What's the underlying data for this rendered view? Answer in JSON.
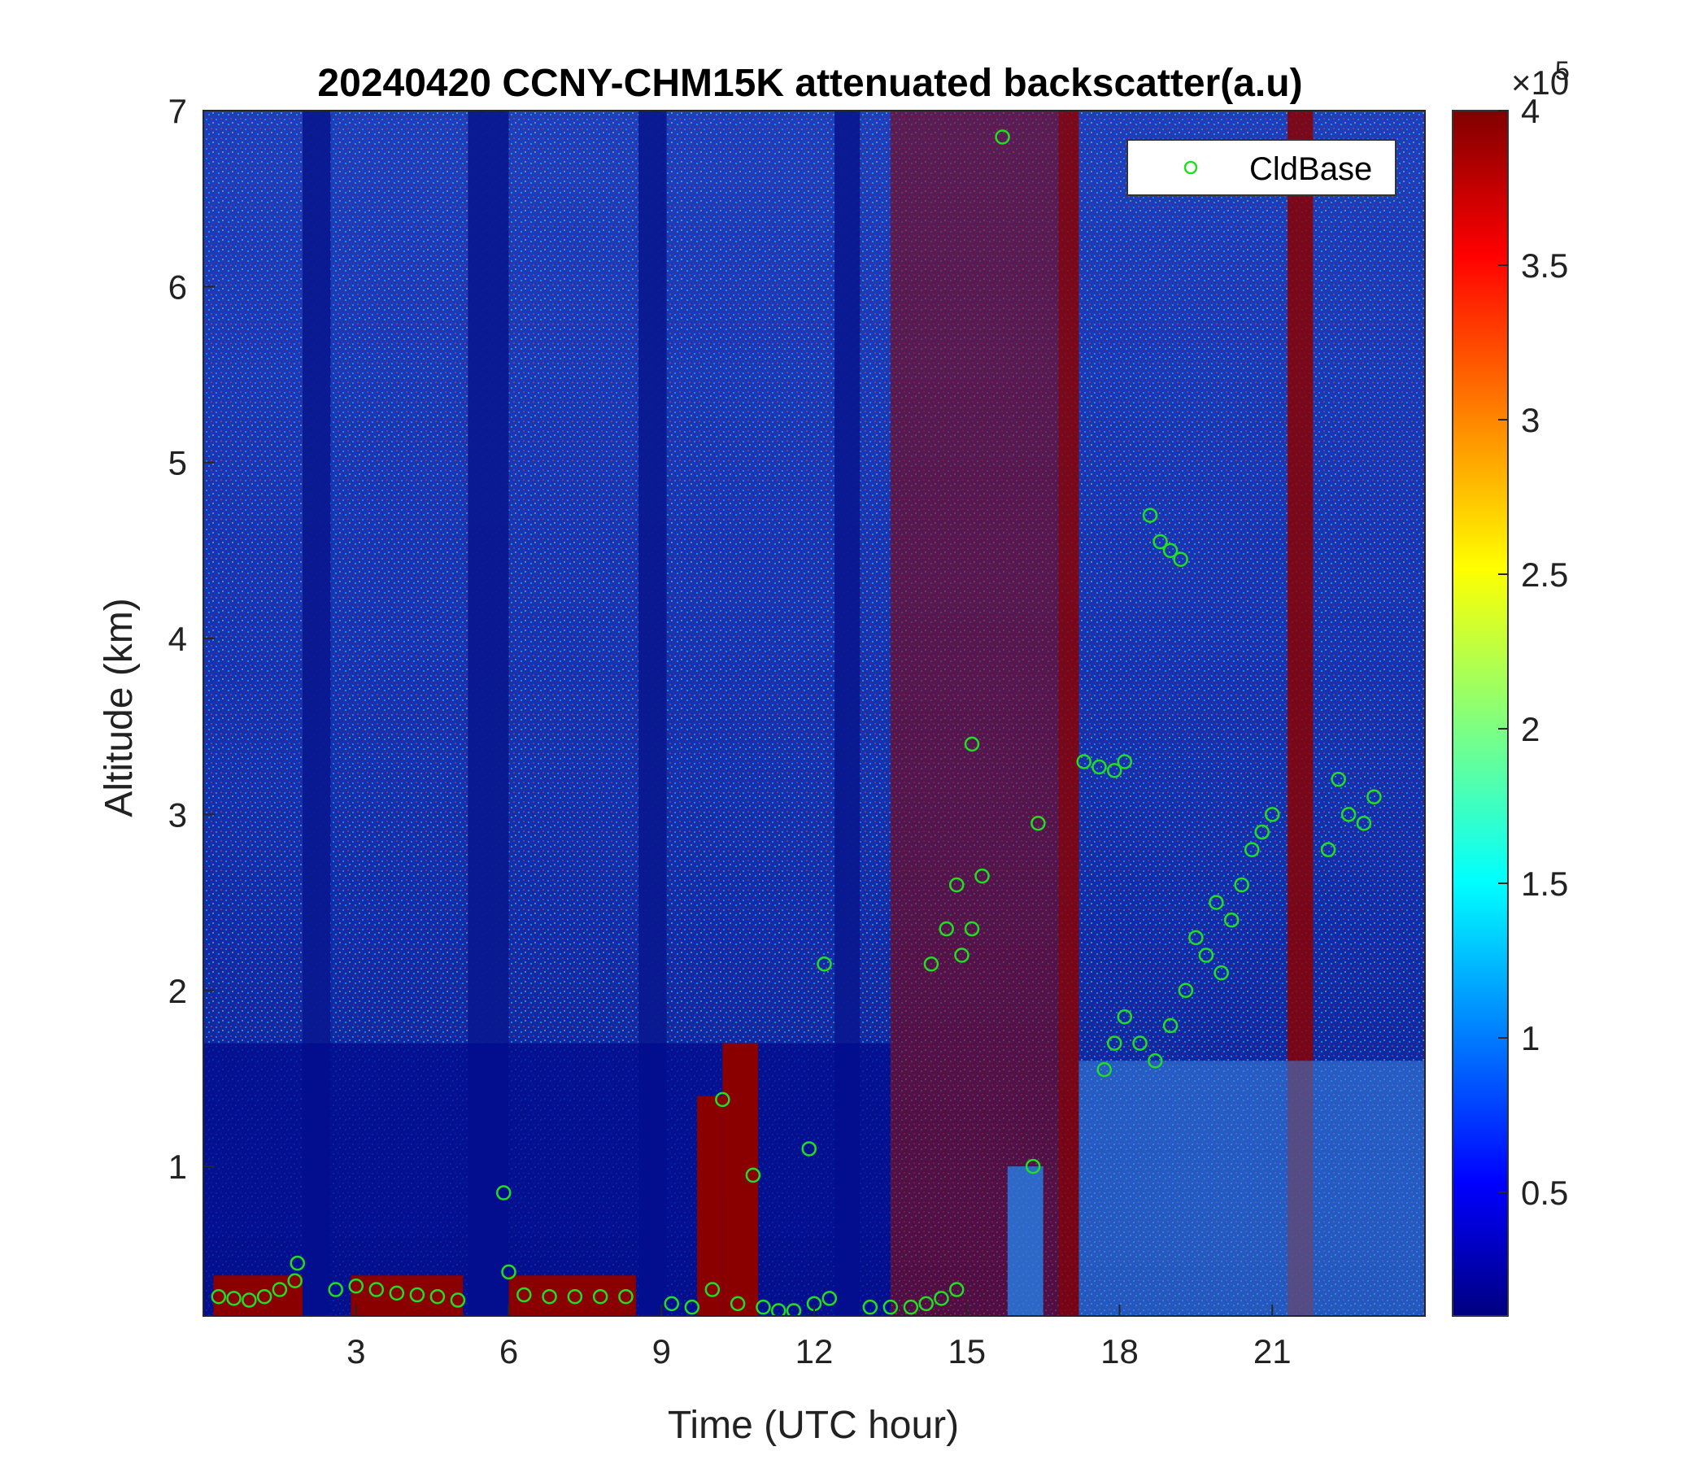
{
  "chart_data": {
    "type": "heatmap",
    "title": "20240420 CCNY-CHM15K attenuated backscatter(a.u)",
    "xlabel": "Time (UTC hour)",
    "ylabel": "Altitude (km)",
    "xlim": [
      0,
      24
    ],
    "ylim": [
      0.15,
      7
    ],
    "xticks": [
      3,
      6,
      9,
      12,
      15,
      18,
      21
    ],
    "yticks": [
      1,
      2,
      3,
      4,
      5,
      6,
      7
    ],
    "grid": false,
    "colormap": "jet",
    "colorbar": {
      "range": [
        0.1,
        4
      ],
      "ticks": [
        0.5,
        1,
        1.5,
        2,
        2.5,
        3,
        3.5,
        4
      ],
      "exponent_base": "×10",
      "exponent": "5"
    },
    "legend": {
      "placement": "top-right",
      "entries": [
        "CldBase"
      ]
    },
    "series_color": "#22dd22",
    "heatmap_regions": {
      "saturated_time_bands": [
        [
          13.5,
          16.8
        ],
        [
          16.8,
          17.2
        ],
        [
          21.3,
          21.8
        ]
      ],
      "low_signal_time_bands": [
        [
          1.95,
          2.5
        ],
        [
          5.2,
          6.0
        ],
        [
          8.55,
          9.1
        ],
        [
          12.4,
          12.9
        ]
      ],
      "near_surface_high_layers": [
        [
          0.2,
          1.95,
          0.38
        ],
        [
          2.9,
          5.1,
          0.38
        ],
        [
          6.0,
          8.5,
          0.38
        ],
        [
          9.7,
          10.2,
          1.4
        ],
        [
          10.2,
          10.9,
          1.7
        ]
      ]
    },
    "series": [
      {
        "name": "CldBase",
        "points": [
          [
            0.3,
            0.26
          ],
          [
            0.6,
            0.25
          ],
          [
            0.9,
            0.24
          ],
          [
            1.2,
            0.26
          ],
          [
            1.5,
            0.3
          ],
          [
            1.8,
            0.35
          ],
          [
            1.85,
            0.45
          ],
          [
            2.6,
            0.3
          ],
          [
            3.0,
            0.32
          ],
          [
            3.4,
            0.3
          ],
          [
            3.8,
            0.28
          ],
          [
            4.2,
            0.27
          ],
          [
            4.6,
            0.26
          ],
          [
            5.0,
            0.24
          ],
          [
            5.9,
            0.85
          ],
          [
            6.0,
            0.4
          ],
          [
            6.3,
            0.27
          ],
          [
            6.8,
            0.26
          ],
          [
            7.3,
            0.26
          ],
          [
            7.8,
            0.26
          ],
          [
            8.3,
            0.26
          ],
          [
            9.2,
            0.22
          ],
          [
            9.6,
            0.2
          ],
          [
            10.0,
            0.3
          ],
          [
            10.2,
            1.38
          ],
          [
            10.5,
            0.22
          ],
          [
            10.8,
            0.95
          ],
          [
            11.0,
            0.2
          ],
          [
            11.3,
            0.18
          ],
          [
            11.6,
            0.18
          ],
          [
            11.9,
            1.1
          ],
          [
            12.0,
            0.22
          ],
          [
            12.3,
            0.25
          ],
          [
            12.2,
            2.15
          ],
          [
            13.1,
            0.2
          ],
          [
            13.5,
            0.2
          ],
          [
            13.9,
            0.2
          ],
          [
            14.2,
            0.22
          ],
          [
            14.5,
            0.25
          ],
          [
            14.8,
            0.3
          ],
          [
            14.3,
            2.15
          ],
          [
            14.6,
            2.35
          ],
          [
            14.9,
            2.2
          ],
          [
            14.8,
            2.6
          ],
          [
            15.1,
            3.4
          ],
          [
            15.3,
            2.65
          ],
          [
            15.1,
            2.35
          ],
          [
            15.7,
            6.85
          ],
          [
            16.3,
            1.0
          ],
          [
            16.4,
            2.95
          ],
          [
            17.3,
            3.3
          ],
          [
            17.6,
            3.27
          ],
          [
            17.9,
            3.25
          ],
          [
            18.1,
            3.3
          ],
          [
            17.7,
            1.55
          ],
          [
            17.9,
            1.7
          ],
          [
            18.1,
            1.85
          ],
          [
            18.4,
            1.7
          ],
          [
            18.7,
            1.6
          ],
          [
            18.6,
            4.7
          ],
          [
            18.8,
            4.55
          ],
          [
            19.0,
            4.5
          ],
          [
            19.2,
            4.45
          ],
          [
            19.0,
            1.8
          ],
          [
            19.3,
            2.0
          ],
          [
            19.5,
            2.3
          ],
          [
            19.7,
            2.2
          ],
          [
            19.9,
            2.5
          ],
          [
            20.0,
            2.1
          ],
          [
            20.2,
            2.4
          ],
          [
            20.4,
            2.6
          ],
          [
            20.6,
            2.8
          ],
          [
            20.8,
            2.9
          ],
          [
            21.0,
            3.0
          ],
          [
            22.1,
            2.8
          ],
          [
            22.3,
            3.2
          ],
          [
            22.5,
            3.0
          ],
          [
            22.8,
            2.95
          ],
          [
            23.0,
            3.1
          ]
        ]
      }
    ]
  }
}
